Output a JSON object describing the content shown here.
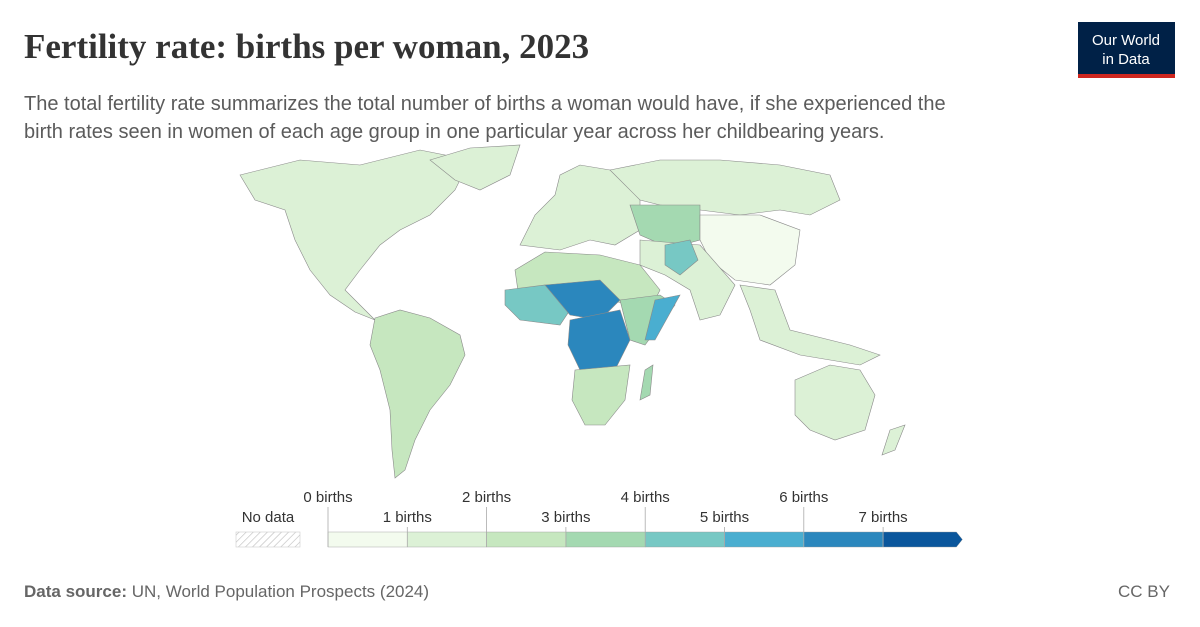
{
  "header": {
    "title": "Fertility rate: births per woman, 2023",
    "subtitle_lines": [
      "The total fertility rate summarizes the total number of births a woman would have, if she experienced the",
      "birth rates seen in women of each age group in one particular year across her childbearing years."
    ]
  },
  "logo": {
    "lines": [
      "Our World",
      "in Data"
    ]
  },
  "legend": {
    "no_data_label": "No data",
    "ticks": [
      {
        "value": 0,
        "label": "0 births"
      },
      {
        "value": 1,
        "label": "1 births"
      },
      {
        "value": 2,
        "label": "2 births"
      },
      {
        "value": 3,
        "label": "3 births"
      },
      {
        "value": 4,
        "label": "4 births"
      },
      {
        "value": 5,
        "label": "5 births"
      },
      {
        "value": 6,
        "label": "6 births"
      },
      {
        "value": 7,
        "label": "7 births"
      }
    ],
    "colors": [
      "#f3fbee",
      "#dcf1d6",
      "#c6e7bf",
      "#a4d9b1",
      "#77c8c4",
      "#4aaed0",
      "#2b87bd",
      "#0a569c"
    ]
  },
  "footer": {
    "source_label": "Data source:",
    "source": "UN, World Population Prospects (2024)",
    "license": "CC BY"
  }
}
